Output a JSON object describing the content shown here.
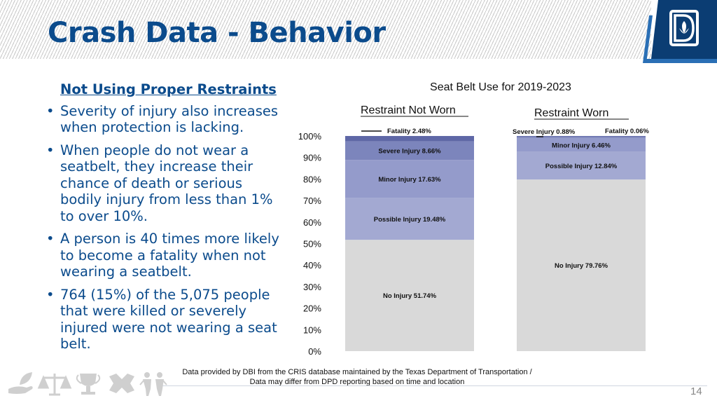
{
  "slide": {
    "title": "Crash Data - Behavior",
    "page_number": "14",
    "footer": [
      "Data provided by DBI from the CRIS database maintained by the Texas Department of Transportation /",
      "Data may differ from DPD reporting based on time and location"
    ],
    "logo_icon": "dallas-logo-icon",
    "footer_icons": [
      "hand-leaf-icon",
      "scales-icon",
      "trophy-icon",
      "puzzle-icon",
      "people-icon"
    ]
  },
  "bullets": {
    "heading": "Not Using Proper Restraints",
    "items": [
      "Severity of injury also increases when protection is lacking.",
      "When people do not wear a seatbelt, they increase their chance of death or serious bodily injury from less than 1% to over 10%.",
      "A person is 40 times more likely to become a fatality when not wearing a seatbelt.",
      "764 (15%) of the 5,075 people that were killed or severely injured were not wearing a seat belt."
    ]
  },
  "chart_data": {
    "type": "bar",
    "stacked": true,
    "title": "Seat Belt Use for 2019-2023",
    "categories": [
      "Restraint Not Worn",
      "Restraint Worn"
    ],
    "ylim": [
      0,
      100
    ],
    "yticks": [
      "0%",
      "10%",
      "20%",
      "30%",
      "40%",
      "50%",
      "60%",
      "70%",
      "80%",
      "90%",
      "100%"
    ],
    "series": [
      {
        "name": "No Injury",
        "values": [
          51.74,
          79.76
        ],
        "color": "#d9d9d9",
        "labels": [
          "No Injury 51.74%",
          "No Injury 79.76%"
        ]
      },
      {
        "name": "Possible Injury",
        "values": [
          19.48,
          12.84
        ],
        "color": "#a3a9d2",
        "labels": [
          "Possible Injury 19.48%",
          "Possible Injury 12.84%"
        ]
      },
      {
        "name": "Minor Injury",
        "values": [
          17.63,
          6.46
        ],
        "color": "#949bcb",
        "labels": [
          "Minor Injury 17.63%",
          "Minor Injury 6.46%"
        ]
      },
      {
        "name": "Severe Injury",
        "values": [
          8.66,
          0.88
        ],
        "color": "#7c85bc",
        "labels": [
          "Severe Injury 8.66%",
          "Severe Injury 0.88%"
        ]
      },
      {
        "name": "Fatality",
        "values": [
          2.48,
          0.06
        ],
        "color": "#5e67a6",
        "labels": [
          "Fatality 2.48%",
          "Fatality 0.06%"
        ]
      }
    ]
  }
}
